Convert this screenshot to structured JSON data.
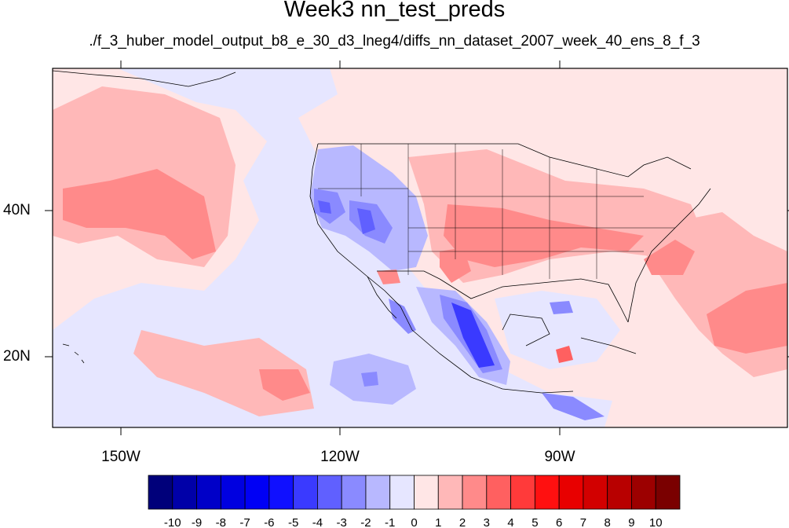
{
  "title": "Week3 nn_test_preds",
  "subtitle": "./f_3_huber_model_output_b8_e_30_d3_lneg4/diffs_nn_dataset_2007_week_40_ens_8_f_3",
  "map": {
    "lat_labels": [
      "40N",
      "20N"
    ],
    "lon_labels": [
      "150W",
      "120W",
      "90W"
    ],
    "lon_range": [
      -159.4,
      -60.2
    ],
    "lat_range": [
      10.0,
      59.1
    ]
  },
  "colorbar": {
    "labels": [
      "-10",
      "-9",
      "-8",
      "-7",
      "-6",
      "-5",
      "-4",
      "-3",
      "-2",
      "-1",
      "0",
      "1",
      "2",
      "3",
      "4",
      "5",
      "6",
      "7",
      "8",
      "9",
      "10"
    ],
    "colors": [
      "#00007a",
      "#0000a8",
      "#0000c8",
      "#0000e0",
      "#0000f5",
      "#1010ff",
      "#3a3aff",
      "#6060ff",
      "#8a8aff",
      "#b8b8ff",
      "#e6e6ff",
      "#ffe6e6",
      "#ffb8b8",
      "#ff8a8a",
      "#ff6060",
      "#ff3a3a",
      "#ff1010",
      "#e80000",
      "#d20000",
      "#b80000",
      "#9c0000",
      "#7a0000"
    ]
  }
}
